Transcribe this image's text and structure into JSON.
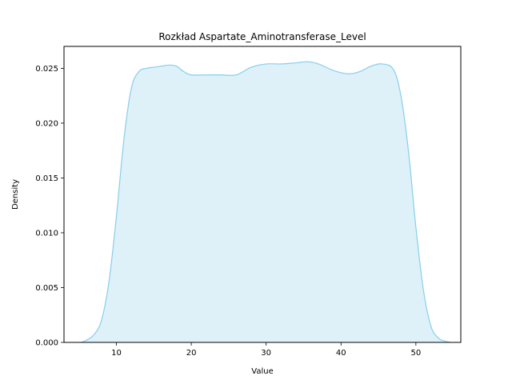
{
  "chart_data": {
    "type": "area",
    "title": "Rozkład Aspartate_Aminotransferase_Level",
    "xlabel": "Value",
    "ylabel": "Density",
    "xlim": [
      3,
      56
    ],
    "ylim": [
      0,
      0.027
    ],
    "xticks": [
      10,
      20,
      30,
      40,
      50
    ],
    "yticks": [
      0.0,
      0.005,
      0.01,
      0.015,
      0.02,
      0.025
    ],
    "ytick_labels": [
      "0.000",
      "0.005",
      "0.010",
      "0.015",
      "0.020",
      "0.025"
    ],
    "grid": false,
    "legend": false,
    "colors": {
      "line": "#87ceeb",
      "fill": "#87ceeb",
      "fill_opacity": 0.28,
      "axes": "#000000"
    },
    "x": [
      5.3,
      6,
      7,
      8,
      9,
      10,
      11,
      12,
      13,
      14,
      15,
      16,
      17,
      18,
      19,
      20,
      22,
      24,
      26,
      28,
      30,
      32,
      34,
      35.5,
      37,
      39,
      41,
      42.5,
      44,
      45.5,
      47,
      48,
      49,
      50,
      51,
      52,
      53,
      54,
      54.7
    ],
    "y": [
      0.0,
      0.0002,
      0.0007,
      0.002,
      0.0055,
      0.0115,
      0.0185,
      0.0232,
      0.0247,
      0.025,
      0.0251,
      0.0252,
      0.0253,
      0.0252,
      0.0247,
      0.0244,
      0.0244,
      0.0244,
      0.0244,
      0.0251,
      0.0254,
      0.0254,
      0.0255,
      0.0256,
      0.0254,
      0.0248,
      0.0245,
      0.0247,
      0.0252,
      0.0254,
      0.0249,
      0.0225,
      0.0175,
      0.0105,
      0.0048,
      0.0015,
      0.0004,
      0.0001,
      0.0
    ]
  }
}
